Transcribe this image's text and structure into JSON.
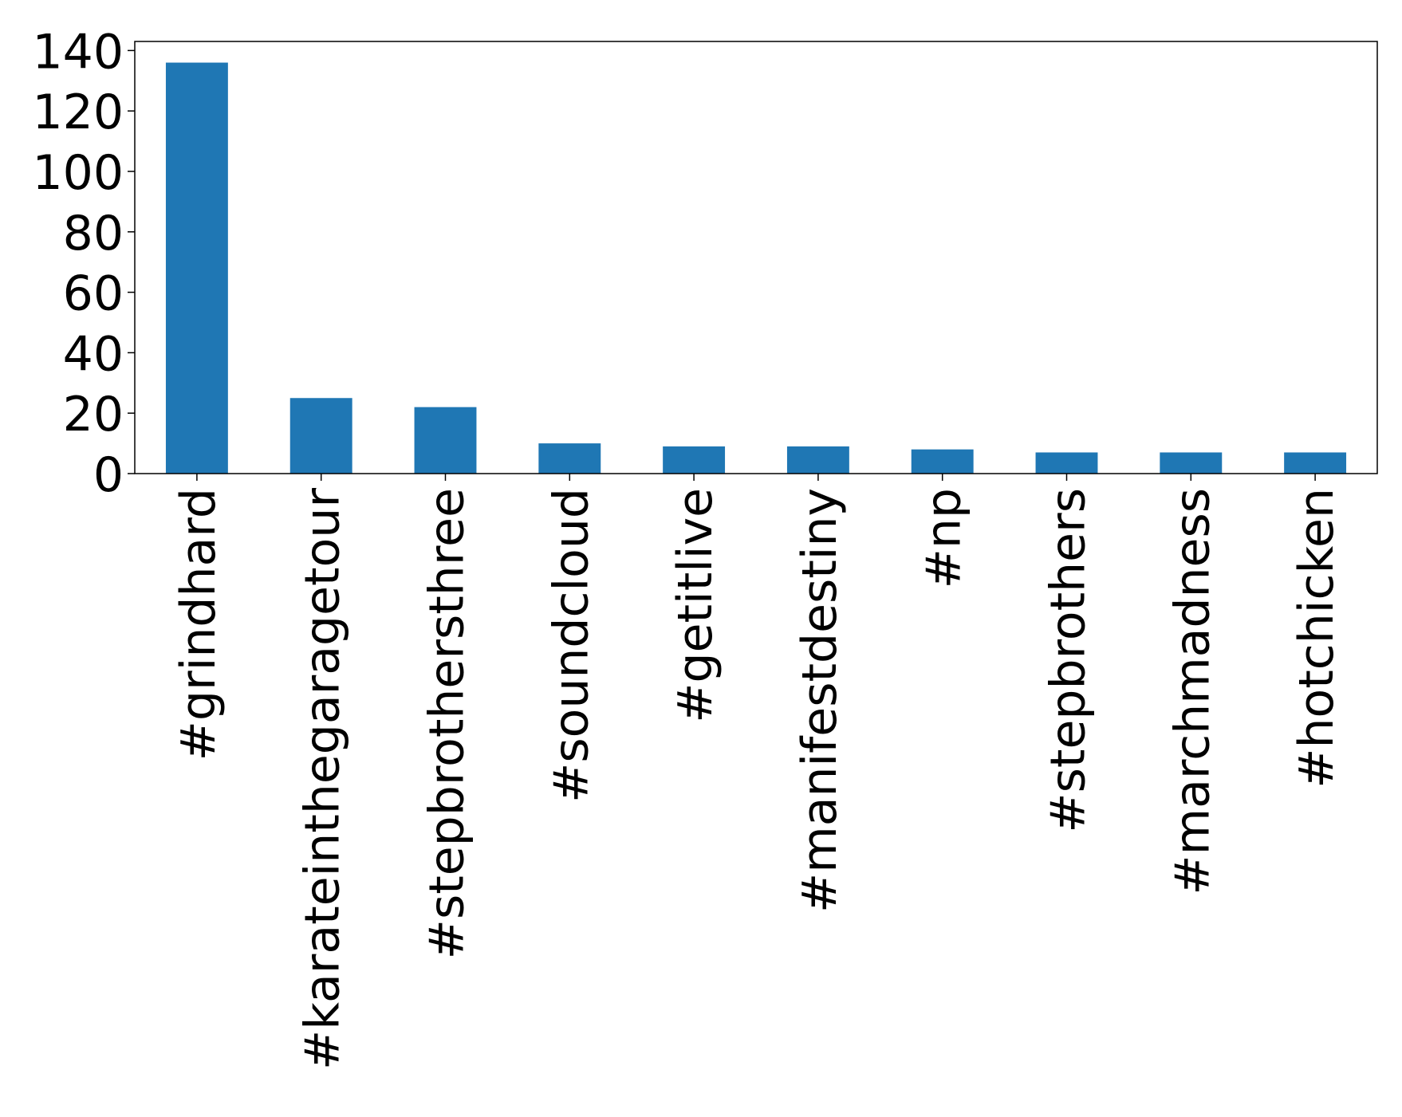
{
  "chart_data": {
    "type": "bar",
    "categories": [
      "#grindhard",
      "#karateinthegaragetour",
      "#stepbrothersthree",
      "#soundcloud",
      "#getitlive",
      "#manifestdestiny",
      "#np",
      "#stepbrothers",
      "#marchmadness",
      "#hotchicken"
    ],
    "values": [
      136,
      25,
      22,
      10,
      9,
      9,
      8,
      7,
      7,
      7
    ],
    "title": "",
    "xlabel": "",
    "ylabel": "",
    "ylim": [
      0,
      143
    ],
    "yticks": [
      0,
      20,
      40,
      60,
      80,
      100,
      120,
      140
    ],
    "grid": false,
    "legend": "none",
    "bar_color": "#1f77b4"
  }
}
